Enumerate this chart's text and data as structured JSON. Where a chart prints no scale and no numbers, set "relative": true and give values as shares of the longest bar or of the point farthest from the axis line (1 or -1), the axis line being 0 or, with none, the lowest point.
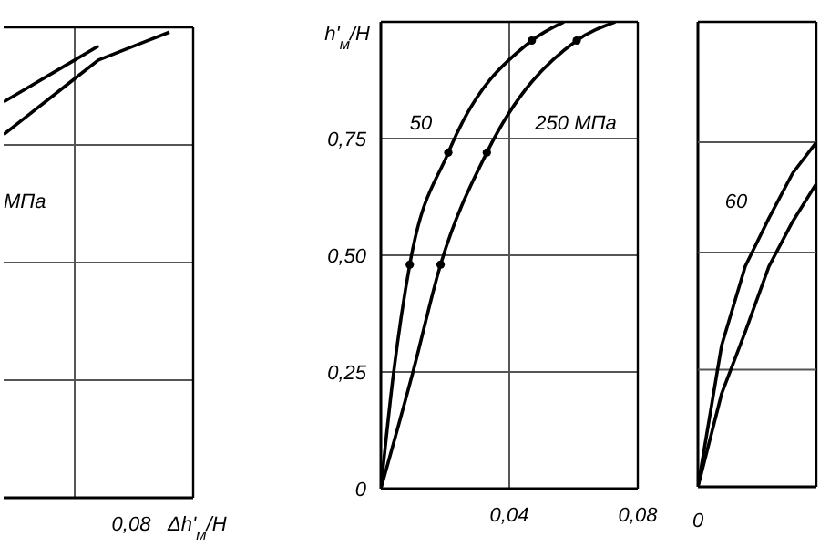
{
  "chart_data": [
    {
      "type": "line",
      "relative": true,
      "xlabel": "Δh'$_{м}$/H",
      "grid": true,
      "categories": [
        null,
        null,
        null,
        null,
        null,
        null,
        null,
        null,
        null
      ],
      "series": [
        {
          "color": "#000000",
          "values": [
            0.85,
            0.88,
            0.91,
            0.94,
            0.97,
            null,
            null,
            null,
            null
          ]
        },
        {
          "color": "#000000",
          "values": [
            0.78,
            0.82,
            0.86,
            0.9,
            0.94,
            0.96,
            0.98,
            1.0,
            null
          ]
        }
      ],
      "annotations": [
        "МПа",
        "0,08"
      ]
    },
    {
      "type": "line",
      "ylabel": "h'$_{м}$/H",
      "xlim": [
        0,
        0.08
      ],
      "ylim": [
        0,
        1
      ],
      "xticks": [
        {
          "value": 0,
          "label": null
        },
        {
          "value": 0.04,
          "label": "0,04"
        },
        {
          "value": 0.08,
          "label": "0,08"
        }
      ],
      "yticks": [
        {
          "value": 0,
          "label": "0"
        },
        {
          "value": 0.25,
          "label": "0,25"
        },
        {
          "value": 0.5,
          "label": "0,50"
        },
        {
          "value": 0.75,
          "label": "0,75"
        },
        {
          "value": 1,
          "label": null
        }
      ],
      "grid": true,
      "series": [
        {
          "color": "#000000",
          "x": [
            0,
            0.004,
            0.009,
            0.021,
            0.047,
            0.057
          ],
          "values": [
            0,
            0.25,
            0.48,
            0.72,
            0.96,
            1.0
          ]
        },
        {
          "color": "#000000",
          "x": [
            0,
            0.01,
            0.0186,
            0.033,
            0.061,
            0.073
          ],
          "values": [
            0,
            0.25,
            0.48,
            0.72,
            0.96,
            1.0
          ]
        },
        {
          "type": "scatter",
          "color": "#000000",
          "marker": "circle",
          "x": [
            0.009,
            0.021,
            0.047
          ],
          "values": [
            0.48,
            0.72,
            0.96
          ]
        },
        {
          "type": "scatter",
          "color": "#000000",
          "marker": "circle",
          "x": [
            0.0186,
            0.033,
            0.061
          ],
          "values": [
            0.48,
            0.72,
            0.96
          ]
        }
      ],
      "annotations": [
        "50",
        "250 МПа"
      ]
    },
    {
      "type": "line",
      "relative": true,
      "ref_lines": [
        {
          "axis": "y",
          "value": 0.34,
          "color": "#555555"
        },
        {
          "axis": "y",
          "value": 0.68,
          "color": "#555555"
        },
        {
          "axis": "y",
          "value": 1.0,
          "color": "#555555"
        }
      ],
      "categories": [
        null,
        null,
        null,
        null,
        null,
        null
      ],
      "series": [
        {
          "color": "#000000",
          "values": [
            0,
            0.41,
            0.64,
            0.78,
            0.91,
            1.0
          ]
        },
        {
          "color": "#000000",
          "values": [
            0,
            0.27,
            0.45,
            0.64,
            0.77,
            0.88
          ]
        }
      ],
      "annotations": [
        "60",
        "0"
      ]
    }
  ]
}
